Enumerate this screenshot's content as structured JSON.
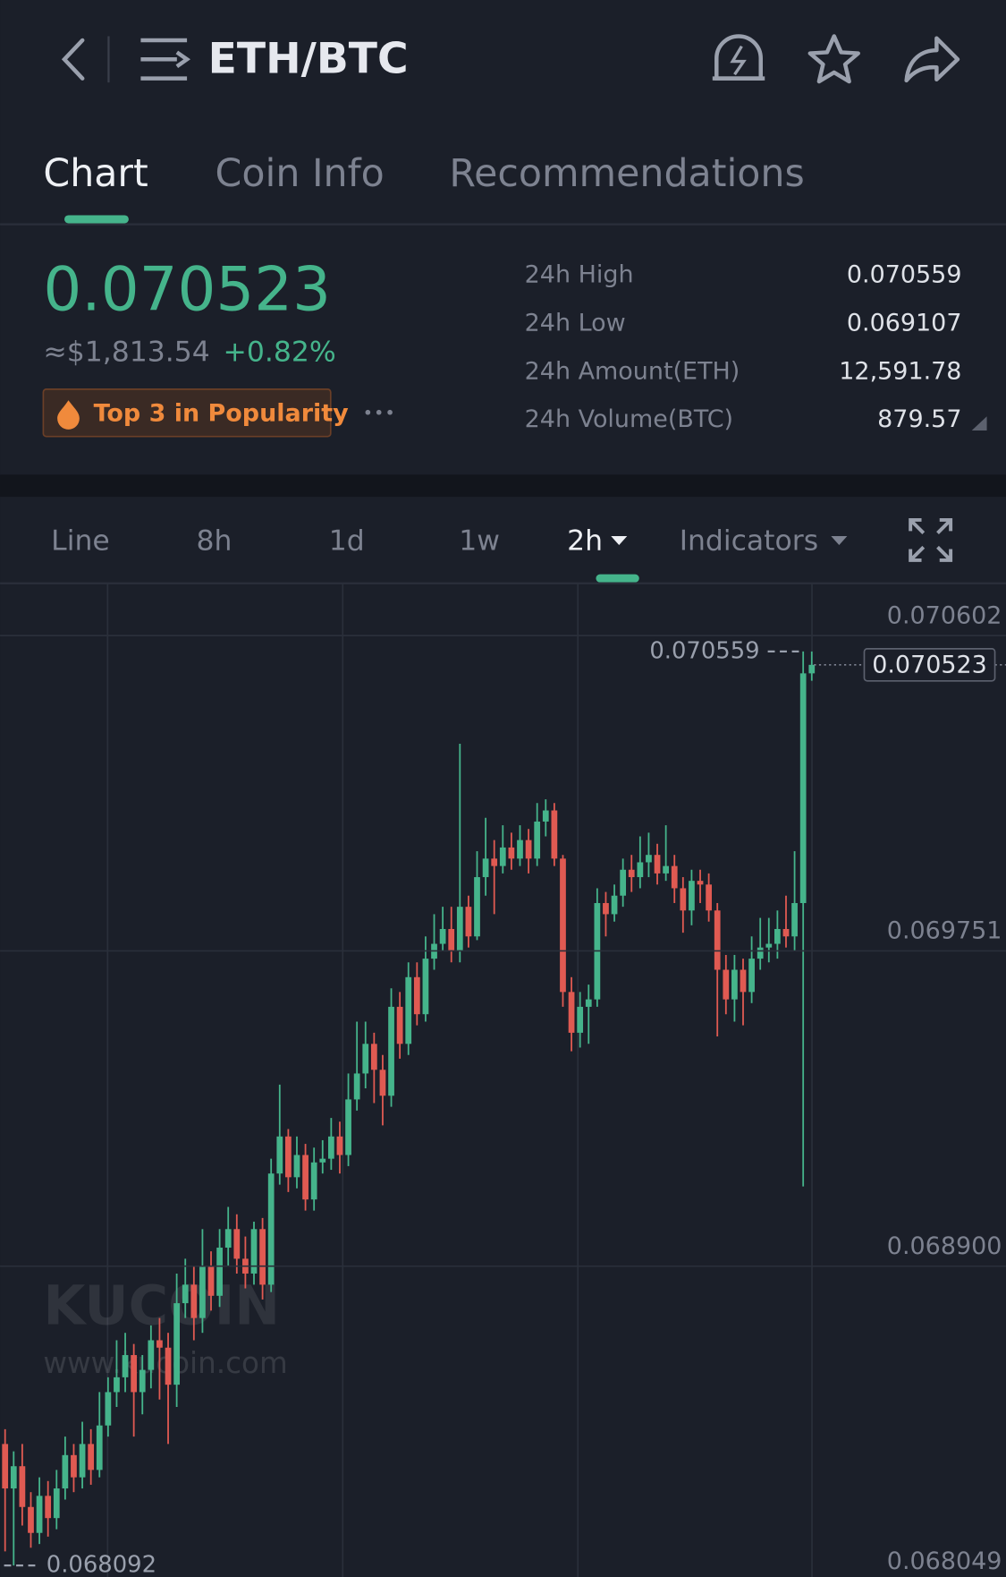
{
  "header": {
    "title": "ETH/BTC"
  },
  "tabs": [
    "Chart",
    "Coin Info",
    "Recommendations"
  ],
  "ticker": {
    "price": "0.070523",
    "fiat": "≈$1,813.54",
    "change": "+0.82%",
    "badge": "Top 3 in Popularity"
  },
  "stats": {
    "rows": [
      {
        "label": "24h High",
        "value": "0.070559"
      },
      {
        "label": "24h Low",
        "value": "0.069107"
      },
      {
        "label": "24h Amount(ETH)",
        "value": "12,591.78"
      },
      {
        "label": "24h Volume(BTC)",
        "value": "879.57"
      }
    ]
  },
  "toolbar": {
    "items": [
      "Line",
      "8h",
      "1d",
      "1w",
      "2h",
      "Indicators"
    ]
  },
  "watermark": {
    "brand": "KUCOIN",
    "url": "www.kucoin.com"
  },
  "chart_data": {
    "type": "candlestick",
    "up_color": "#45b48b",
    "down_color": "#e05a52",
    "grid": true,
    "ylim": [
      0.068061,
      0.070743
    ],
    "yticks": [
      0.070602,
      0.069751,
      {
        "value": 0.0689,
        "label": "0.068900"
      },
      0.068049
    ],
    "max_label": 0.070559,
    "min_label": 0.068092,
    "last_price": 0.070523,
    "open": [
      0.06842,
      0.0683,
      0.06836,
      0.06825,
      0.06818,
      0.06828,
      0.06822,
      0.0683,
      0.06839,
      0.06833,
      0.06842,
      0.06835,
      0.06847,
      0.06856,
      0.0686,
      0.06866,
      0.06856,
      0.06862,
      0.0687,
      0.06868,
      0.06858,
      0.0688,
      0.06885,
      0.06876,
      0.0689,
      0.06882,
      0.06895,
      0.069,
      0.06892,
      0.06888,
      0.069,
      0.06885,
      0.06915,
      0.06925,
      0.06914,
      0.0692,
      0.06908,
      0.06918,
      0.06919,
      0.06925,
      0.0692,
      0.06935,
      0.06942,
      0.0695,
      0.06943,
      0.06936,
      0.0696,
      0.0695,
      0.06968,
      0.06958,
      0.06973,
      0.06977,
      0.06981,
      0.06975,
      0.06987,
      0.06979,
      0.06995,
      0.07,
      0.06998,
      0.07003,
      0.07,
      0.07005,
      0.07,
      0.0701,
      0.07013,
      0.07,
      0.06964,
      0.06953,
      0.0696,
      0.06962,
      0.06988,
      0.06985,
      0.0699,
      0.06997,
      0.06995,
      0.06999,
      0.07001,
      0.06996,
      0.06998,
      0.06992,
      0.06986,
      0.06994,
      0.06993,
      0.06986,
      0.0697,
      0.06962,
      0.0697,
      0.06964,
      0.06973,
      0.06976,
      0.06977,
      0.06981,
      0.06979,
      0.06988,
      0.0705
    ],
    "high": [
      0.06846,
      0.0684,
      0.06842,
      0.06829,
      0.06833,
      0.06832,
      0.06835,
      0.06844,
      0.06842,
      0.06848,
      0.06846,
      0.06856,
      0.0686,
      0.0687,
      0.06872,
      0.06869,
      0.06866,
      0.06874,
      0.06876,
      0.06872,
      0.06888,
      0.06892,
      0.0689,
      0.069,
      0.06894,
      0.069,
      0.06906,
      0.06904,
      0.06898,
      0.06902,
      0.06903,
      0.06919,
      0.06939,
      0.06927,
      0.06925,
      0.06923,
      0.06922,
      0.06924,
      0.0693,
      0.06929,
      0.06942,
      0.06956,
      0.06956,
      0.06953,
      0.06947,
      0.06965,
      0.06964,
      0.06972,
      0.06972,
      0.06979,
      0.06985,
      0.06987,
      0.06987,
      0.07031,
      0.0699,
      0.07002,
      0.07011,
      0.07005,
      0.07009,
      0.07007,
      0.07009,
      0.07008,
      0.07015,
      0.07016,
      0.07015,
      0.07001,
      0.06968,
      0.06964,
      0.06966,
      0.06992,
      0.06991,
      0.06993,
      0.07,
      0.07001,
      0.07006,
      0.07007,
      0.07004,
      0.07009,
      0.07001,
      0.06995,
      0.06997,
      0.06997,
      0.06996,
      0.06988,
      0.06974,
      0.06974,
      0.06973,
      0.06979,
      0.06984,
      0.06984,
      0.06986,
      0.0699,
      0.07002,
      0.070559,
      0.070559
    ],
    "low": [
      0.06813,
      0.068092,
      0.0682,
      0.06814,
      0.06815,
      0.06817,
      0.06819,
      0.06827,
      0.06829,
      0.0683,
      0.06831,
      0.06833,
      0.06844,
      0.06852,
      0.06856,
      0.06844,
      0.0685,
      0.06857,
      0.06854,
      0.06842,
      0.06852,
      0.06876,
      0.0687,
      0.06872,
      0.06878,
      0.06879,
      0.0689,
      0.06888,
      0.06884,
      0.06885,
      0.06881,
      0.06883,
      0.06912,
      0.0691,
      0.06911,
      0.06905,
      0.06905,
      0.06915,
      0.06916,
      0.06915,
      0.06917,
      0.06932,
      0.06938,
      0.06934,
      0.06928,
      0.06933,
      0.06946,
      0.06947,
      0.06955,
      0.06956,
      0.0697,
      0.06975,
      0.06972,
      0.06972,
      0.06976,
      0.06978,
      0.0699,
      0.06985,
      0.06996,
      0.06997,
      0.06998,
      0.06996,
      0.06998,
      0.07006,
      0.06998,
      0.0696,
      0.06948,
      0.06949,
      0.0695,
      0.0696,
      0.06979,
      0.06983,
      0.06987,
      0.06991,
      0.06992,
      0.06995,
      0.06993,
      0.06994,
      0.06988,
      0.0698,
      0.06982,
      0.06988,
      0.06983,
      0.06952,
      0.06958,
      0.06956,
      0.06955,
      0.06961,
      0.0697,
      0.06972,
      0.06973,
      0.06976,
      0.06975,
      0.069115,
      0.07048
    ],
    "close": [
      0.0683,
      0.06836,
      0.06825,
      0.06818,
      0.06828,
      0.06822,
      0.0683,
      0.06839,
      0.06833,
      0.06842,
      0.06835,
      0.06847,
      0.06856,
      0.0686,
      0.06866,
      0.06856,
      0.06862,
      0.0687,
      0.06868,
      0.06858,
      0.0688,
      0.06885,
      0.06876,
      0.0689,
      0.06882,
      0.06895,
      0.069,
      0.06892,
      0.06888,
      0.069,
      0.06885,
      0.06915,
      0.06925,
      0.06914,
      0.0692,
      0.06908,
      0.06918,
      0.06919,
      0.06925,
      0.0692,
      0.06935,
      0.06942,
      0.0695,
      0.06943,
      0.06936,
      0.0696,
      0.0695,
      0.06968,
      0.06958,
      0.06973,
      0.06977,
      0.06981,
      0.06975,
      0.06987,
      0.06979,
      0.06995,
      0.07,
      0.06998,
      0.07003,
      0.07,
      0.07005,
      0.07,
      0.0701,
      0.07013,
      0.07,
      0.06964,
      0.06953,
      0.0696,
      0.06962,
      0.06988,
      0.06985,
      0.0699,
      0.06997,
      0.06995,
      0.06999,
      0.07001,
      0.06996,
      0.06998,
      0.06992,
      0.06986,
      0.06994,
      0.06993,
      0.06986,
      0.0697,
      0.06962,
      0.0697,
      0.06964,
      0.06973,
      0.06976,
      0.06977,
      0.06981,
      0.06979,
      0.06988,
      0.0705,
      0.070523
    ]
  }
}
